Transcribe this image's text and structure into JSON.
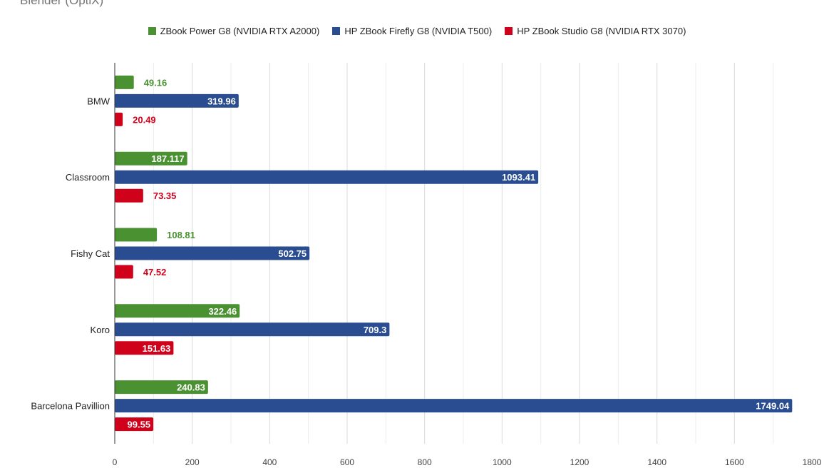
{
  "chart_data": {
    "type": "bar",
    "orientation": "horizontal",
    "title": "Blender (OptiX)",
    "categories": [
      "BMW",
      "Classroom",
      "Fishy Cat",
      "Koro",
      "Barcelona Pavillion"
    ],
    "series": [
      {
        "name": "ZBook Power G8 (NVIDIA RTX A2000)",
        "color": "#4a9132",
        "values": [
          49.16,
          187.117,
          108.81,
          322.46,
          240.83
        ],
        "labels": [
          "49.16",
          "187.117",
          "108.81",
          "322.46",
          "240.83"
        ]
      },
      {
        "name": "HP ZBook Firefly G8 (NVIDIA T500)",
        "color": "#2a4d91",
        "values": [
          319.96,
          1093.41,
          502.75,
          709.3,
          1749.04
        ],
        "labels": [
          "319.96",
          "1093.41",
          "502.75",
          "709.3",
          "1749.04"
        ]
      },
      {
        "name": "HP ZBook Studio G8 (NVIDIA RTX 3070)",
        "color": "#d0021b",
        "values": [
          20.49,
          73.35,
          47.52,
          151.63,
          99.55
        ],
        "labels": [
          "20.49",
          "73.35",
          "47.52",
          "151.63",
          "99.55"
        ]
      }
    ],
    "xlim": [
      0,
      1800
    ],
    "xticks": [
      0,
      200,
      400,
      600,
      800,
      1000,
      1200,
      1400,
      1600,
      1800
    ],
    "xtick_labels": [
      "0",
      "200",
      "400",
      "600",
      "800",
      "1000",
      "1200",
      "1400",
      "1600",
      "1800"
    ],
    "grid": true,
    "legend_position": "top"
  }
}
